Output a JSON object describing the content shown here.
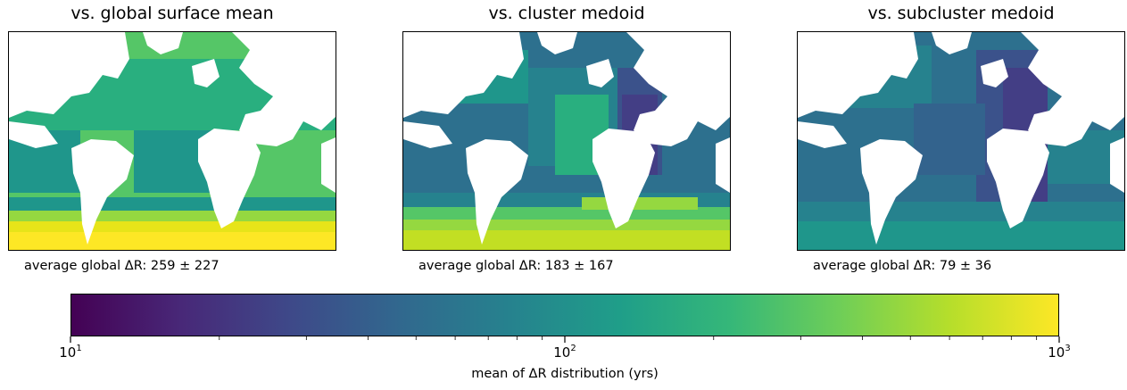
{
  "chart_data": {
    "type": "heatmap",
    "panels": [
      {
        "title": "vs. global surface mean",
        "stat": "average global ΔR: 259 ± 227",
        "mean_years": 259,
        "std_years": 227,
        "palette": "bright"
      },
      {
        "title": "vs. cluster medoid",
        "stat": "average global ΔR: 183 ± 167",
        "mean_years": 183,
        "std_years": 167,
        "palette": "mixed"
      },
      {
        "title": "vs. subcluster medoid",
        "stat": "average global ΔR: 79 ± 36",
        "mean_years": 79,
        "std_years": 36,
        "palette": "dark"
      }
    ],
    "colorbar": {
      "label": "mean of ΔR distribution (yrs)",
      "scale": "log",
      "range": [
        10,
        1000
      ],
      "ticks": [
        {
          "base": "10",
          "exp": "1",
          "value": 10
        },
        {
          "base": "10",
          "exp": "2",
          "value": 100
        },
        {
          "base": "10",
          "exp": "3",
          "value": 1000
        }
      ],
      "colormap": "viridis",
      "colormap_stops": [
        "#440154",
        "#482878",
        "#3e4989",
        "#31688e",
        "#26828e",
        "#1f9e89",
        "#35b779",
        "#6ece58",
        "#b5de2b",
        "#fde725"
      ]
    }
  }
}
